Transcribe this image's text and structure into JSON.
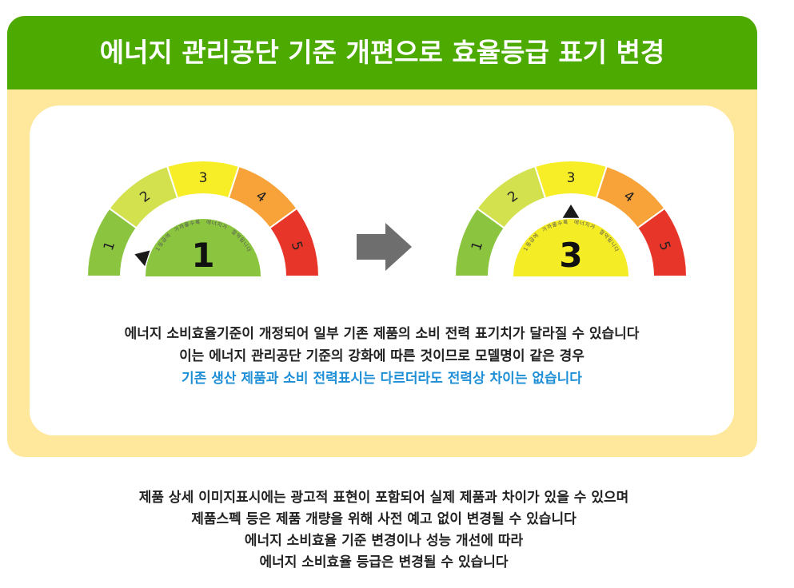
{
  "header": {
    "title": "에너지 관리공단 기준 개편으로 효율등급 표기 변경"
  },
  "gauge": {
    "caption": "1등급에 가까울수록 에너지가 절약됩니다",
    "segment_labels": [
      "1",
      "2",
      "3",
      "4",
      "5"
    ],
    "segment_colors": [
      "#8bc540",
      "#d3e14f",
      "#f7ee28",
      "#f7a33a",
      "#e8352a"
    ],
    "before": {
      "grade": "1",
      "color": "#8bc540"
    },
    "after": {
      "grade": "3",
      "color": "#f4ec24"
    },
    "arrow_color": "#6e6e6e"
  },
  "notice": {
    "line1": "에너지 소비효율기준이 개정되어 일부 기존 제품의 소비 전력 표기치가 달라질 수 있습니다",
    "line2": "이는 에너지 관리공단 기준의 강화에 따른 것이므로 모델명이 같은 경우",
    "line3": "기존 생산 제품과 소비 전력표시는 다르더라도 전력상 차이는 없습니다"
  },
  "footer": {
    "line1": "제품 상세 이미지표시에는 광고적 표현이 포함되어 실제 제품과 차이가 있을 수 있으며",
    "line2": "제품스펙 등은 제품 개량을 위해 사전 예고 없이 변경될 수 있습니다",
    "line3": "에너지 소비효율 기준 변경이나 성능 개선에 따라",
    "line4": "에너지 소비효율 등급은 변경될 수 있습니다"
  }
}
